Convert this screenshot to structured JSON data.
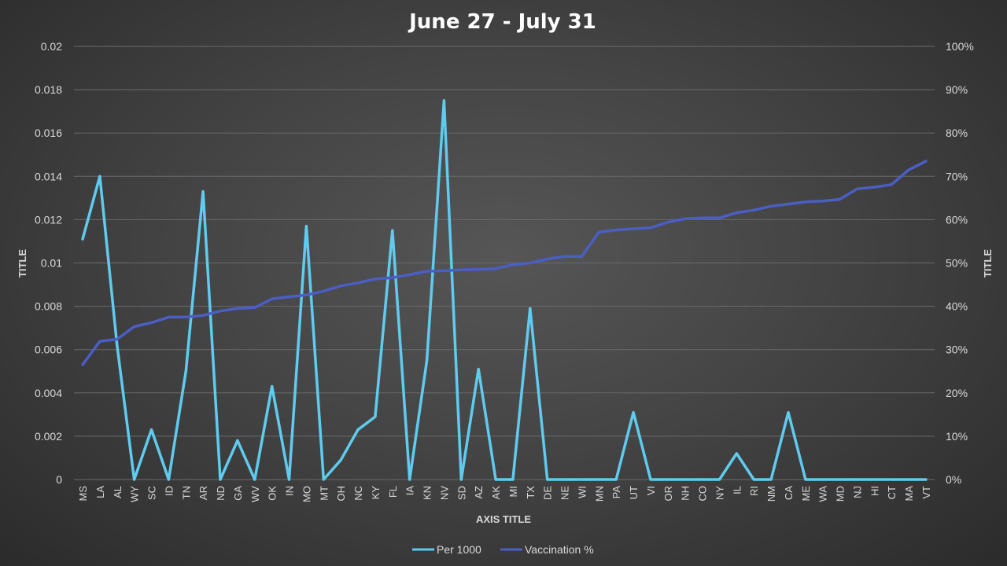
{
  "chart_data": {
    "type": "line",
    "title": "June 27 - July 31",
    "xlabel": "AXIS TITLE",
    "ylabel_left": "TITLE",
    "ylabel_right": "TITLE",
    "ylim_left": [
      0,
      0.02
    ],
    "ylim_right": [
      0,
      1
    ],
    "left_ticks": [
      "0",
      "0.002",
      "0.004",
      "0.006",
      "0.008",
      "0.01",
      "0.012",
      "0.014",
      "0.016",
      "0.018",
      "0.02"
    ],
    "right_ticks": [
      "0%",
      "10%",
      "20%",
      "30%",
      "40%",
      "50%",
      "60%",
      "70%",
      "80%",
      "90%",
      "100%"
    ],
    "grid": true,
    "legend_position": "bottom",
    "categories": [
      "MS",
      "LA",
      "AL",
      "WY",
      "SC",
      "ID",
      "TN",
      "AR",
      "ND",
      "GA",
      "WV",
      "OK",
      "IN",
      "MO",
      "MT",
      "OH",
      "NC",
      "KY",
      "FL",
      "IA",
      "KN",
      "NV",
      "SD",
      "AZ",
      "AK",
      "MI",
      "TX",
      "DE",
      "NE",
      "WI",
      "MN",
      "PA",
      "UT",
      "VI",
      "OR",
      "NH",
      "CO",
      "NY",
      "IL",
      "RI",
      "NM",
      "CA",
      "ME",
      "WA",
      "MD",
      "NJ",
      "HI",
      "CT",
      "MA",
      "VT"
    ],
    "series": [
      {
        "name": "Per 1000",
        "axis": "left",
        "color": "#5fcbef",
        "values": [
          0.0111,
          0.014,
          0.0062,
          0.0,
          0.0023,
          0.0,
          0.005,
          0.0133,
          0.0,
          0.0018,
          0.0,
          0.0043,
          0.0,
          0.0117,
          0.0,
          0.0009,
          0.0023,
          0.0029,
          0.0115,
          0.0,
          0.0055,
          0.0175,
          0.0,
          0.0051,
          0.0,
          0.0,
          0.0079,
          0.0,
          0.0,
          0.0,
          0.0,
          0.0,
          0.0031,
          0.0,
          0.0,
          0.0,
          0.0,
          0.0,
          0.0012,
          0.0,
          0.0,
          0.0031,
          0.0,
          0.0,
          0.0,
          0.0,
          0.0,
          0.0,
          0.0,
          0.0
        ]
      },
      {
        "name": "Vaccination %",
        "axis": "right",
        "color": "#4a5ec4",
        "values": [
          0.265,
          0.319,
          0.324,
          0.353,
          0.362,
          0.375,
          0.375,
          0.379,
          0.389,
          0.395,
          0.397,
          0.417,
          0.422,
          0.426,
          0.435,
          0.447,
          0.454,
          0.463,
          0.466,
          0.473,
          0.481,
          0.482,
          0.484,
          0.485,
          0.487,
          0.496,
          0.5,
          0.509,
          0.515,
          0.515,
          0.571,
          0.576,
          0.579,
          0.581,
          0.594,
          0.602,
          0.604,
          0.604,
          0.616,
          0.622,
          0.631,
          0.636,
          0.641,
          0.643,
          0.647,
          0.671,
          0.675,
          0.681,
          0.715,
          0.735
        ]
      }
    ]
  }
}
